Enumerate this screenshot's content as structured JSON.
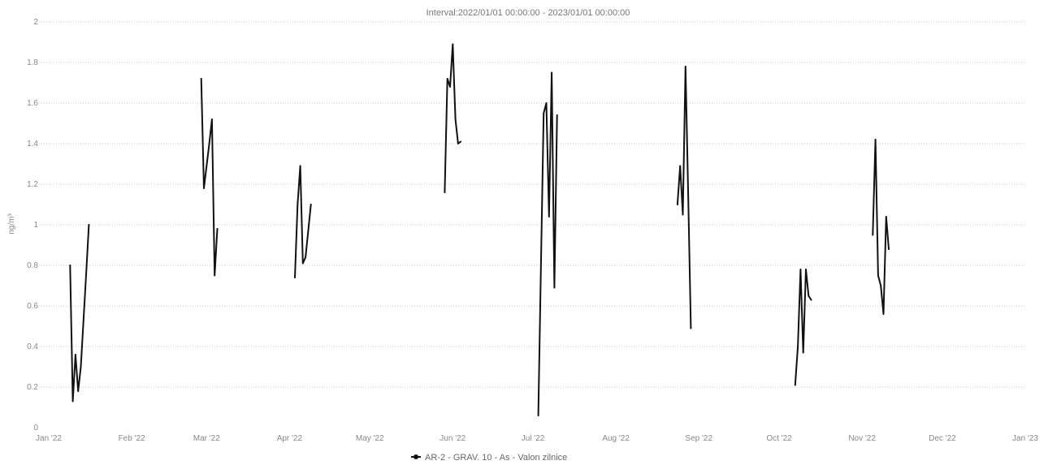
{
  "chart_data": {
    "type": "line",
    "title": "Interval:2022/01/01 00:00:00 - 2023/01/01 00:00:00",
    "ylabel": "ng/m³",
    "xlabel": "",
    "x_range": [
      "2022-01-01",
      "2023-01-01"
    ],
    "ylim": [
      0,
      2
    ],
    "grid": "horizontal",
    "legend_position": "bottom-center",
    "x_ticks": [
      {
        "date": "2022-01-01",
        "label": "Jan '22"
      },
      {
        "date": "2022-02-01",
        "label": "Feb '22"
      },
      {
        "date": "2022-03-01",
        "label": "Mar '22"
      },
      {
        "date": "2022-04-01",
        "label": "Apr '22"
      },
      {
        "date": "2022-05-01",
        "label": "May '22"
      },
      {
        "date": "2022-06-01",
        "label": "Jun '22"
      },
      {
        "date": "2022-07-01",
        "label": "Jul '22"
      },
      {
        "date": "2022-08-01",
        "label": "Aug '22"
      },
      {
        "date": "2022-09-01",
        "label": "Sep '22"
      },
      {
        "date": "2022-10-01",
        "label": "Oct '22"
      },
      {
        "date": "2022-11-01",
        "label": "Nov '22"
      },
      {
        "date": "2022-12-01",
        "label": "Dec '22"
      },
      {
        "date": "2023-01-01",
        "label": "Jan '23"
      }
    ],
    "y_ticks": [
      {
        "value": 0,
        "label": "0"
      },
      {
        "value": 0.2,
        "label": "0.2"
      },
      {
        "value": 0.4,
        "label": "0.4"
      },
      {
        "value": 0.6,
        "label": "0.6"
      },
      {
        "value": 0.8,
        "label": "0.8"
      },
      {
        "value": 1,
        "label": "1"
      },
      {
        "value": 1.2,
        "label": "1.2"
      },
      {
        "value": 1.4,
        "label": "1.4"
      },
      {
        "value": 1.6,
        "label": "1.6"
      },
      {
        "value": 1.8,
        "label": "1.8"
      },
      {
        "value": 2,
        "label": "2"
      }
    ],
    "series": [
      {
        "name": "AR-2 - GRAV. 10 - As - Valon zilnice",
        "color": "#111111",
        "segments": [
          [
            {
              "x": "2022-01-09",
              "y": 0.8
            },
            {
              "x": "2022-01-10",
              "y": 0.13
            },
            {
              "x": "2022-01-11",
              "y": 0.36
            },
            {
              "x": "2022-01-12",
              "y": 0.18
            },
            {
              "x": "2022-01-13",
              "y": 0.3
            },
            {
              "x": "2022-01-15",
              "y": 0.76
            },
            {
              "x": "2022-01-16",
              "y": 1.0
            }
          ],
          [
            {
              "x": "2022-02-27",
              "y": 1.72
            },
            {
              "x": "2022-02-28",
              "y": 1.18
            },
            {
              "x": "2022-03-02",
              "y": 1.4
            },
            {
              "x": "2022-03-03",
              "y": 1.52
            },
            {
              "x": "2022-03-04",
              "y": 0.75
            },
            {
              "x": "2022-03-05",
              "y": 0.98
            }
          ],
          [
            {
              "x": "2022-04-03",
              "y": 0.74
            },
            {
              "x": "2022-04-04",
              "y": 1.1
            },
            {
              "x": "2022-04-05",
              "y": 1.29
            },
            {
              "x": "2022-04-06",
              "y": 0.81
            },
            {
              "x": "2022-04-07",
              "y": 0.84
            },
            {
              "x": "2022-04-09",
              "y": 1.1
            }
          ],
          [
            {
              "x": "2022-05-29",
              "y": 1.16
            },
            {
              "x": "2022-05-30",
              "y": 1.72
            },
            {
              "x": "2022-05-31",
              "y": 1.68
            },
            {
              "x": "2022-06-01",
              "y": 1.89
            },
            {
              "x": "2022-06-02",
              "y": 1.52
            },
            {
              "x": "2022-06-03",
              "y": 1.4
            },
            {
              "x": "2022-06-04",
              "y": 1.41
            }
          ],
          [
            {
              "x": "2022-07-03",
              "y": 0.06
            },
            {
              "x": "2022-07-05",
              "y": 1.55
            },
            {
              "x": "2022-07-06",
              "y": 1.6
            },
            {
              "x": "2022-07-07",
              "y": 1.04
            },
            {
              "x": "2022-07-08",
              "y": 1.75
            },
            {
              "x": "2022-07-09",
              "y": 0.69
            },
            {
              "x": "2022-07-10",
              "y": 1.54
            }
          ],
          [
            {
              "x": "2022-08-24",
              "y": 1.1
            },
            {
              "x": "2022-08-25",
              "y": 1.29
            },
            {
              "x": "2022-08-26",
              "y": 1.05
            },
            {
              "x": "2022-08-27",
              "y": 1.78
            },
            {
              "x": "2022-08-28",
              "y": 1.15
            },
            {
              "x": "2022-08-29",
              "y": 0.49
            }
          ],
          [
            {
              "x": "2022-10-07",
              "y": 0.21
            },
            {
              "x": "2022-10-08",
              "y": 0.4
            },
            {
              "x": "2022-10-09",
              "y": 0.78
            },
            {
              "x": "2022-10-10",
              "y": 0.37
            },
            {
              "x": "2022-10-11",
              "y": 0.78
            },
            {
              "x": "2022-10-12",
              "y": 0.65
            },
            {
              "x": "2022-10-13",
              "y": 0.63
            }
          ],
          [
            {
              "x": "2022-11-05",
              "y": 0.95
            },
            {
              "x": "2022-11-06",
              "y": 1.42
            },
            {
              "x": "2022-11-07",
              "y": 0.75
            },
            {
              "x": "2022-11-08",
              "y": 0.7
            },
            {
              "x": "2022-11-09",
              "y": 0.56
            },
            {
              "x": "2022-11-10",
              "y": 1.04
            },
            {
              "x": "2022-11-11",
              "y": 0.88
            }
          ]
        ]
      }
    ]
  }
}
